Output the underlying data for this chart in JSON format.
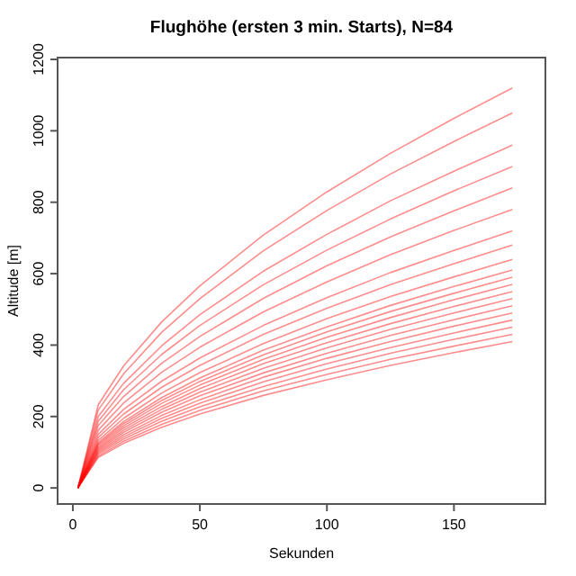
{
  "chart_data": {
    "type": "line",
    "title": "Flughöhe (ersten 3 min. Starts), N=84",
    "xlabel": "Sekunden",
    "ylabel": "Altitude [m]",
    "x": [
      2,
      10,
      20,
      35,
      50,
      75,
      100,
      125,
      150,
      173
    ],
    "xlim": [
      -6,
      186
    ],
    "ylim": [
      -45,
      1205
    ],
    "xticks": [
      0,
      50,
      100,
      150
    ],
    "yticks": [
      0,
      200,
      400,
      600,
      800,
      1000,
      1200
    ],
    "line_style": "solid",
    "series": [
      {
        "color": "#ff0000",
        "values": [
          0,
          233,
          342,
          465,
          566,
          708,
          829,
          937,
          1035,
          1120
        ]
      },
      {
        "color": "#ff0000",
        "values": [
          0,
          218,
          320,
          436,
          530,
          664,
          777,
          879,
          970,
          1050
        ]
      },
      {
        "color": "#ff0000",
        "values": [
          0,
          200,
          293,
          398,
          485,
          607,
          710,
          804,
          887,
          960
        ]
      },
      {
        "color": "#ff0000",
        "values": [
          0,
          187,
          275,
          374,
          455,
          569,
          666,
          753,
          832,
          900
        ]
      },
      {
        "color": "#ff0000",
        "values": [
          0,
          175,
          256,
          349,
          424,
          531,
          622,
          703,
          776,
          840
        ]
      },
      {
        "color": "#ff0000",
        "values": [
          0,
          162,
          238,
          324,
          394,
          493,
          577,
          653,
          721,
          780
        ]
      },
      {
        "color": "#ff0000",
        "values": [
          0,
          150,
          220,
          299,
          364,
          455,
          533,
          603,
          665,
          720
        ]
      },
      {
        "color": "#ff0000",
        "values": [
          0,
          141,
          207,
          282,
          343,
          430,
          503,
          569,
          628,
          680
        ]
      },
      {
        "color": "#ff0000",
        "values": [
          0,
          133,
          195,
          266,
          323,
          404,
          474,
          536,
          591,
          640
        ]
      },
      {
        "color": "#ff0000",
        "values": [
          0,
          127,
          186,
          253,
          308,
          386,
          451,
          511,
          564,
          610
        ]
      },
      {
        "color": "#ff0000",
        "values": [
          0,
          123,
          180,
          245,
          298,
          373,
          437,
          494,
          545,
          590
        ]
      },
      {
        "color": "#ff0000",
        "values": [
          0,
          119,
          174,
          237,
          288,
          360,
          422,
          477,
          527,
          570
        ]
      },
      {
        "color": "#ff0000",
        "values": [
          0,
          114,
          168,
          228,
          278,
          348,
          407,
          460,
          508,
          550
        ]
      },
      {
        "color": "#ff0000",
        "values": [
          0,
          110,
          162,
          220,
          268,
          335,
          392,
          444,
          490,
          530
        ]
      },
      {
        "color": "#ff0000",
        "values": [
          0,
          106,
          156,
          212,
          258,
          322,
          377,
          427,
          471,
          510
        ]
      },
      {
        "color": "#ff0000",
        "values": [
          0,
          102,
          149,
          203,
          247,
          310,
          363,
          410,
          453,
          490
        ]
      },
      {
        "color": "#ff0000",
        "values": [
          0,
          98,
          143,
          195,
          237,
          297,
          348,
          393,
          434,
          470
        ]
      },
      {
        "color": "#ff0000",
        "values": [
          0,
          94,
          137,
          187,
          227,
          284,
          333,
          377,
          416,
          450
        ]
      },
      {
        "color": "#ff0000",
        "values": [
          0,
          89,
          131,
          178,
          217,
          272,
          318,
          360,
          397,
          430
        ]
      },
      {
        "color": "#ff0000",
        "values": [
          0,
          85,
          125,
          170,
          207,
          259,
          303,
          343,
          379,
          410
        ]
      }
    ]
  }
}
